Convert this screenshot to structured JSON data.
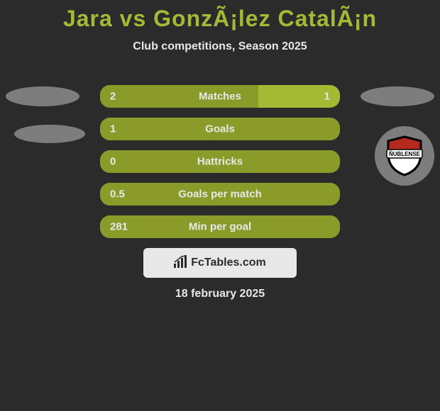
{
  "background_color": "#2b2b2b",
  "title": {
    "text": "Jara vs GonzÃ¡lez CatalÃ¡n",
    "color": "#a4b934",
    "fontsize": 32
  },
  "subtitle": {
    "text": "Club competitions, Season 2025",
    "color": "#e8e8e8",
    "fontsize": 16
  },
  "ellipse_color": "#7d7d7d",
  "badge": {
    "bg": "#7d7d7d",
    "shield_top": "#b5291f",
    "shield_bottom": "#ffffff",
    "shield_border": "#000000",
    "banner_bg": "#ffffff",
    "banner_text": "ÑUBLENSE",
    "banner_text_color": "#000000"
  },
  "bars": {
    "bg_color": "#a4b934",
    "fill_color": "#8a9b2a",
    "text_color": "#e8e8e8",
    "label_fontsize": 15,
    "rows": [
      {
        "label": "Matches",
        "left": "2",
        "right": "1",
        "fill_pct": 66
      },
      {
        "label": "Goals",
        "left": "1",
        "right": "",
        "fill_pct": 100
      },
      {
        "label": "Hattricks",
        "left": "0",
        "right": "",
        "fill_pct": 100
      },
      {
        "label": "Goals per match",
        "left": "0.5",
        "right": "",
        "fill_pct": 100
      },
      {
        "label": "Min per goal",
        "left": "281",
        "right": "",
        "fill_pct": 100
      }
    ]
  },
  "watermark": {
    "bg": "#e8e8e8",
    "text": "FcTables.com",
    "text_color": "#2b2b2b",
    "icon_color": "#2b2b2b"
  },
  "date": {
    "text": "18 february 2025",
    "color": "#e8e8e8",
    "fontsize": 16
  }
}
